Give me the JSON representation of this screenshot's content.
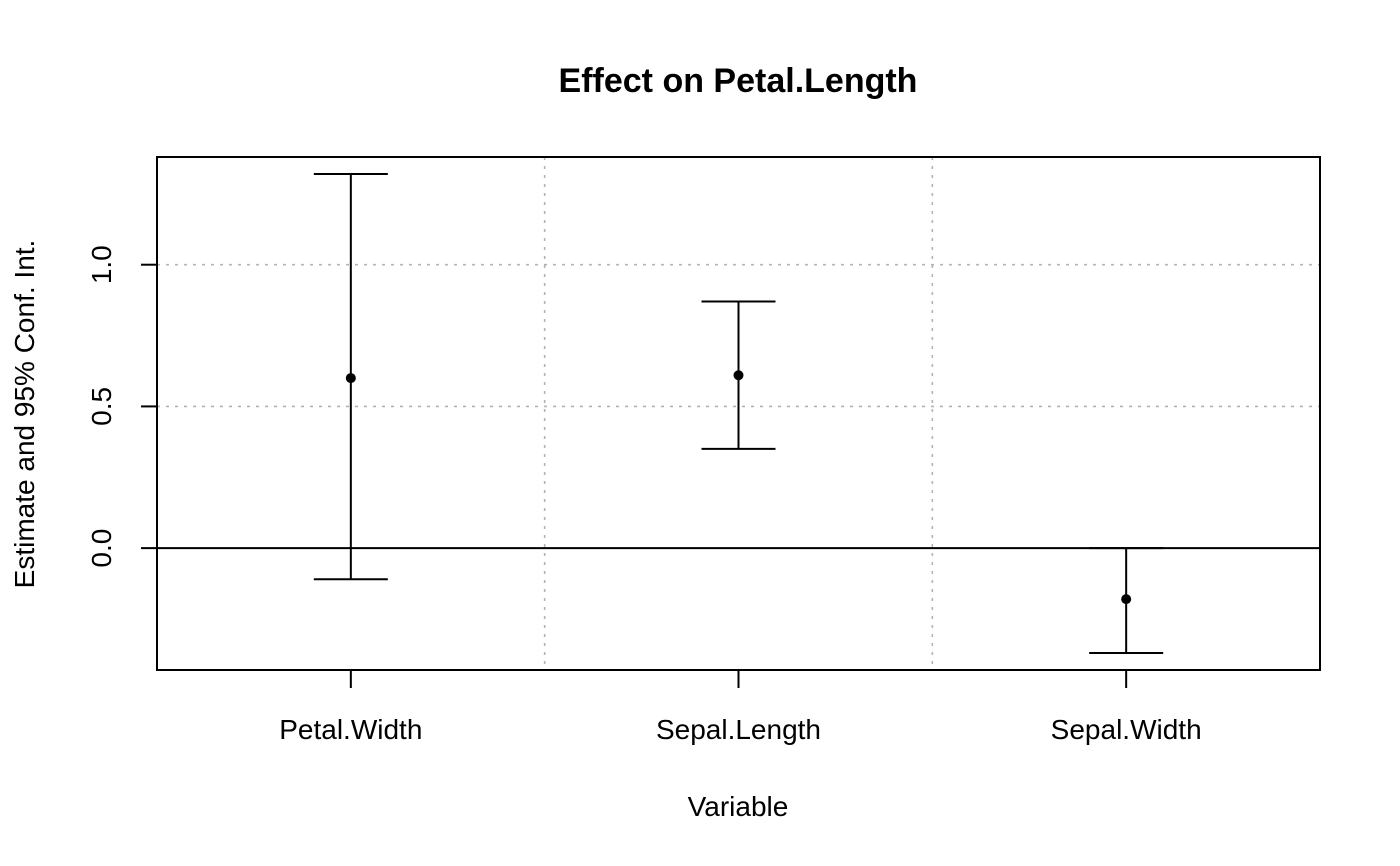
{
  "chart_data": {
    "type": "errorbar",
    "title": "Effect on Petal.Length",
    "xlabel": "Variable",
    "ylabel": "Estimate and 95% Conf. Int.",
    "categories": [
      "Petal.Width",
      "Sepal.Length",
      "Sepal.Width"
    ],
    "estimates": [
      0.6,
      0.61,
      -0.18
    ],
    "lower": [
      -0.11,
      0.35,
      -0.37
    ],
    "upper": [
      1.32,
      0.87,
      0.0
    ],
    "ylim": [
      -0.43,
      1.38
    ],
    "xlim": [
      0.5,
      3.5
    ],
    "yticks": [
      0.0,
      0.5,
      1.0
    ],
    "ytick_labels": [
      "0.0",
      "0.5",
      "1.0"
    ],
    "xgrid": [
      0.5,
      1.5,
      2.5,
      3.5
    ],
    "ygrid": [
      0.5,
      1.0
    ],
    "reference_line": 0,
    "grid": true
  }
}
